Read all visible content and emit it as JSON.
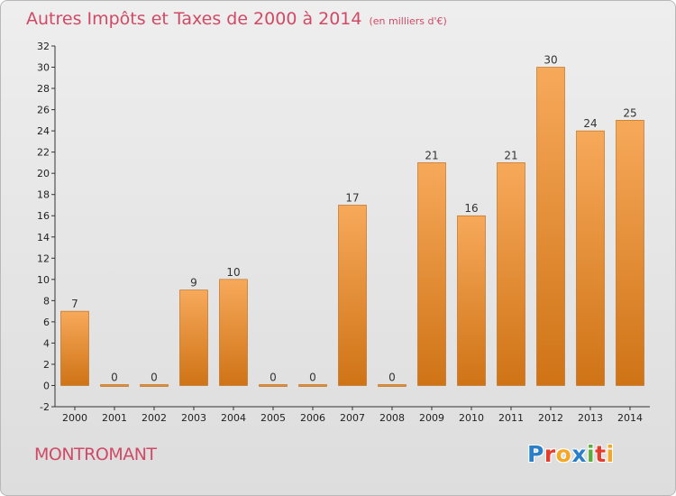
{
  "chart_data": {
    "type": "bar",
    "title": "Autres Impôts et Taxes de 2000 à 2014",
    "subtitle": "(en milliers d'€)",
    "categories": [
      "2000",
      "2001",
      "2002",
      "2003",
      "2004",
      "2005",
      "2006",
      "2007",
      "2008",
      "2009",
      "2010",
      "2011",
      "2012",
      "2013",
      "2014"
    ],
    "values": [
      7,
      0,
      0,
      9,
      10,
      0,
      0,
      17,
      0,
      21,
      16,
      21,
      30,
      24,
      25
    ],
    "ylim": [
      -2,
      32
    ],
    "yticks": [
      -2,
      0,
      2,
      4,
      6,
      8,
      10,
      12,
      14,
      16,
      18,
      20,
      22,
      24,
      26,
      28,
      30,
      32
    ],
    "grid": false,
    "bar_color_top": "#f7a95a",
    "bar_color_bottom": "#cf7316"
  },
  "commune": "MONTROMANT",
  "logo": {
    "letters": [
      {
        "char": "P",
        "color": "#2b7fc8"
      },
      {
        "char": "r",
        "color": "#e23d2d"
      },
      {
        "char": "o",
        "color": "#f5a623"
      },
      {
        "char": "x",
        "color": "#2b7fc8"
      },
      {
        "char": "i",
        "color": "#5aad3a"
      },
      {
        "char": "t",
        "color": "#e23d2d"
      },
      {
        "char": "i",
        "color": "#f5a623"
      }
    ]
  }
}
